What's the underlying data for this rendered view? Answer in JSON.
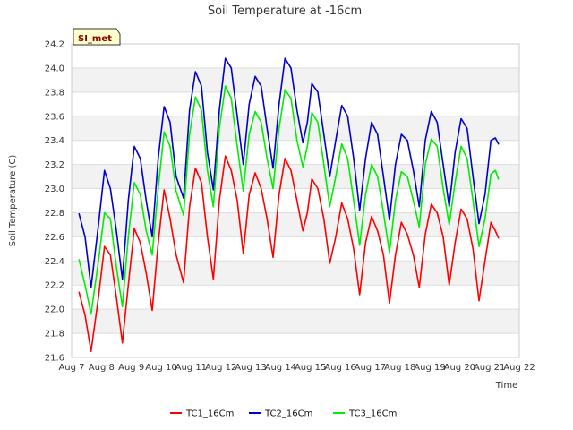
{
  "chart_data": {
    "type": "line",
    "title": "Soil Temperature at -16cm",
    "xlabel": "Time",
    "ylabel": "Soil Temperature (C)",
    "badge": "SI_met",
    "xlim": [
      7,
      22
    ],
    "ylim": [
      21.6,
      24.2
    ],
    "yticks": [
      21.6,
      21.8,
      22.0,
      22.2,
      22.4,
      22.6,
      22.8,
      23.0,
      23.2,
      23.4,
      23.6,
      23.8,
      24.0,
      24.2
    ],
    "xtick_labels": [
      "Aug 7",
      "Aug 8",
      "Aug 9",
      "Aug 10",
      "Aug 11",
      "Aug 12",
      "Aug 13",
      "Aug 14",
      "Aug 15",
      "Aug 16",
      "Aug 17",
      "Aug 18",
      "Aug 19",
      "Aug 20",
      "Aug 21",
      "Aug 22"
    ],
    "grid": true,
    "legend_position": "bottom",
    "series": [
      {
        "name": "TC1_16Cm",
        "color": "#ff0000",
        "points": [
          [
            7.25,
            22.14
          ],
          [
            7.45,
            21.95
          ],
          [
            7.65,
            21.65
          ],
          [
            7.9,
            22.1
          ],
          [
            8.1,
            22.52
          ],
          [
            8.3,
            22.45
          ],
          [
            8.5,
            22.1
          ],
          [
            8.7,
            21.72
          ],
          [
            8.9,
            22.2
          ],
          [
            9.1,
            22.67
          ],
          [
            9.3,
            22.55
          ],
          [
            9.5,
            22.3
          ],
          [
            9.7,
            21.99
          ],
          [
            9.9,
            22.55
          ],
          [
            10.1,
            22.99
          ],
          [
            10.3,
            22.75
          ],
          [
            10.5,
            22.45
          ],
          [
            10.75,
            22.22
          ],
          [
            10.95,
            22.85
          ],
          [
            11.15,
            23.17
          ],
          [
            11.35,
            23.05
          ],
          [
            11.55,
            22.6
          ],
          [
            11.75,
            22.25
          ],
          [
            11.95,
            22.9
          ],
          [
            12.15,
            23.27
          ],
          [
            12.35,
            23.15
          ],
          [
            12.55,
            22.9
          ],
          [
            12.75,
            22.46
          ],
          [
            12.95,
            22.95
          ],
          [
            13.15,
            23.13
          ],
          [
            13.35,
            23.0
          ],
          [
            13.55,
            22.75
          ],
          [
            13.75,
            22.43
          ],
          [
            13.95,
            22.95
          ],
          [
            14.15,
            23.25
          ],
          [
            14.35,
            23.15
          ],
          [
            14.55,
            22.9
          ],
          [
            14.75,
            22.65
          ],
          [
            14.9,
            22.8
          ],
          [
            15.05,
            23.08
          ],
          [
            15.25,
            23.0
          ],
          [
            15.45,
            22.75
          ],
          [
            15.65,
            22.38
          ],
          [
            15.85,
            22.6
          ],
          [
            16.05,
            22.88
          ],
          [
            16.25,
            22.75
          ],
          [
            16.45,
            22.5
          ],
          [
            16.65,
            22.12
          ],
          [
            16.85,
            22.55
          ],
          [
            17.05,
            22.77
          ],
          [
            17.25,
            22.65
          ],
          [
            17.45,
            22.45
          ],
          [
            17.65,
            22.05
          ],
          [
            17.85,
            22.45
          ],
          [
            18.05,
            22.72
          ],
          [
            18.25,
            22.62
          ],
          [
            18.45,
            22.45
          ],
          [
            18.65,
            22.18
          ],
          [
            18.85,
            22.62
          ],
          [
            19.05,
            22.87
          ],
          [
            19.25,
            22.8
          ],
          [
            19.45,
            22.6
          ],
          [
            19.65,
            22.2
          ],
          [
            19.85,
            22.55
          ],
          [
            20.05,
            22.83
          ],
          [
            20.25,
            22.75
          ],
          [
            20.45,
            22.5
          ],
          [
            20.65,
            22.07
          ],
          [
            20.85,
            22.4
          ],
          [
            21.05,
            22.72
          ],
          [
            21.2,
            22.65
          ],
          [
            21.3,
            22.59
          ]
        ]
      },
      {
        "name": "TC2_16Cm",
        "color": "#0000cc",
        "points": [
          [
            7.25,
            22.79
          ],
          [
            7.45,
            22.6
          ],
          [
            7.65,
            22.18
          ],
          [
            7.9,
            22.7
          ],
          [
            8.1,
            23.15
          ],
          [
            8.3,
            23.0
          ],
          [
            8.5,
            22.65
          ],
          [
            8.7,
            22.25
          ],
          [
            8.9,
            22.9
          ],
          [
            9.1,
            23.35
          ],
          [
            9.3,
            23.25
          ],
          [
            9.5,
            22.9
          ],
          [
            9.7,
            22.6
          ],
          [
            9.9,
            23.25
          ],
          [
            10.1,
            23.68
          ],
          [
            10.3,
            23.55
          ],
          [
            10.5,
            23.1
          ],
          [
            10.75,
            22.92
          ],
          [
            10.95,
            23.65
          ],
          [
            11.15,
            23.97
          ],
          [
            11.35,
            23.85
          ],
          [
            11.55,
            23.3
          ],
          [
            11.75,
            22.99
          ],
          [
            11.95,
            23.65
          ],
          [
            12.15,
            24.08
          ],
          [
            12.35,
            24.0
          ],
          [
            12.55,
            23.6
          ],
          [
            12.75,
            23.2
          ],
          [
            12.95,
            23.7
          ],
          [
            13.15,
            23.93
          ],
          [
            13.35,
            23.85
          ],
          [
            13.55,
            23.5
          ],
          [
            13.75,
            23.17
          ],
          [
            13.95,
            23.7
          ],
          [
            14.15,
            24.08
          ],
          [
            14.35,
            24.0
          ],
          [
            14.55,
            23.65
          ],
          [
            14.75,
            23.38
          ],
          [
            14.9,
            23.55
          ],
          [
            15.05,
            23.87
          ],
          [
            15.25,
            23.8
          ],
          [
            15.45,
            23.45
          ],
          [
            15.65,
            23.1
          ],
          [
            15.85,
            23.4
          ],
          [
            16.05,
            23.69
          ],
          [
            16.25,
            23.6
          ],
          [
            16.45,
            23.25
          ],
          [
            16.65,
            22.82
          ],
          [
            16.85,
            23.25
          ],
          [
            17.05,
            23.55
          ],
          [
            17.25,
            23.45
          ],
          [
            17.45,
            23.1
          ],
          [
            17.65,
            22.74
          ],
          [
            17.85,
            23.2
          ],
          [
            18.05,
            23.45
          ],
          [
            18.25,
            23.4
          ],
          [
            18.45,
            23.15
          ],
          [
            18.65,
            22.85
          ],
          [
            18.85,
            23.4
          ],
          [
            19.05,
            23.64
          ],
          [
            19.25,
            23.55
          ],
          [
            19.45,
            23.2
          ],
          [
            19.65,
            22.85
          ],
          [
            19.85,
            23.3
          ],
          [
            20.05,
            23.58
          ],
          [
            20.25,
            23.5
          ],
          [
            20.45,
            23.1
          ],
          [
            20.65,
            22.71
          ],
          [
            20.85,
            22.95
          ],
          [
            21.05,
            23.4
          ],
          [
            21.2,
            23.42
          ],
          [
            21.3,
            23.37
          ]
        ]
      },
      {
        "name": "TC3_16Cm",
        "color": "#00ee00",
        "points": [
          [
            7.25,
            22.41
          ],
          [
            7.45,
            22.2
          ],
          [
            7.65,
            21.96
          ],
          [
            7.9,
            22.4
          ],
          [
            8.1,
            22.8
          ],
          [
            8.3,
            22.75
          ],
          [
            8.5,
            22.35
          ],
          [
            8.7,
            22.02
          ],
          [
            8.9,
            22.6
          ],
          [
            9.1,
            23.05
          ],
          [
            9.3,
            22.95
          ],
          [
            9.5,
            22.65
          ],
          [
            9.7,
            22.45
          ],
          [
            9.9,
            23.0
          ],
          [
            10.1,
            23.47
          ],
          [
            10.3,
            23.35
          ],
          [
            10.5,
            22.98
          ],
          [
            10.75,
            22.78
          ],
          [
            10.95,
            23.45
          ],
          [
            11.15,
            23.76
          ],
          [
            11.35,
            23.65
          ],
          [
            11.55,
            23.15
          ],
          [
            11.75,
            22.85
          ],
          [
            11.95,
            23.5
          ],
          [
            12.15,
            23.85
          ],
          [
            12.35,
            23.75
          ],
          [
            12.55,
            23.35
          ],
          [
            12.75,
            22.98
          ],
          [
            12.95,
            23.45
          ],
          [
            13.15,
            23.64
          ],
          [
            13.35,
            23.55
          ],
          [
            13.55,
            23.25
          ],
          [
            13.75,
            23.0
          ],
          [
            13.95,
            23.5
          ],
          [
            14.15,
            23.82
          ],
          [
            14.35,
            23.75
          ],
          [
            14.55,
            23.4
          ],
          [
            14.75,
            23.18
          ],
          [
            14.9,
            23.35
          ],
          [
            15.05,
            23.63
          ],
          [
            15.25,
            23.55
          ],
          [
            15.45,
            23.2
          ],
          [
            15.65,
            22.85
          ],
          [
            15.85,
            23.1
          ],
          [
            16.05,
            23.37
          ],
          [
            16.25,
            23.25
          ],
          [
            16.45,
            22.9
          ],
          [
            16.65,
            22.53
          ],
          [
            16.85,
            22.95
          ],
          [
            17.05,
            23.2
          ],
          [
            17.25,
            23.1
          ],
          [
            17.45,
            22.8
          ],
          [
            17.65,
            22.47
          ],
          [
            17.85,
            22.9
          ],
          [
            18.05,
            23.14
          ],
          [
            18.25,
            23.1
          ],
          [
            18.45,
            22.9
          ],
          [
            18.65,
            22.68
          ],
          [
            18.85,
            23.2
          ],
          [
            19.05,
            23.41
          ],
          [
            19.25,
            23.35
          ],
          [
            19.45,
            23.0
          ],
          [
            19.65,
            22.7
          ],
          [
            19.85,
            23.05
          ],
          [
            20.05,
            23.35
          ],
          [
            20.25,
            23.25
          ],
          [
            20.45,
            22.9
          ],
          [
            20.65,
            22.52
          ],
          [
            20.85,
            22.75
          ],
          [
            21.05,
            23.12
          ],
          [
            21.2,
            23.15
          ],
          [
            21.3,
            23.08
          ]
        ]
      }
    ]
  }
}
